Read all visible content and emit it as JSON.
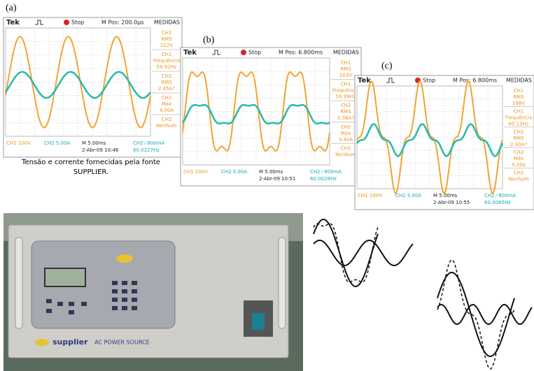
{
  "panels": [
    {
      "label": "(a)",
      "brand": "Tek",
      "status": "Stop",
      "mpos": "M Pos: 200.0µs",
      "measures_title": "MEDIDAS",
      "measures": [
        [
          "CH1",
          "RMS",
          "212V"
        ],
        [
          "CH1",
          "Frequência",
          "59.92Hz"
        ],
        [
          "CH2",
          "RMS",
          "2.45A?"
        ],
        [
          "CH2",
          "Máx",
          "4.00A"
        ],
        [
          "CH2",
          "Nenhum"
        ]
      ],
      "footer": {
        "ch1": "CH1  100V",
        "ch2": "CH2  5.00A",
        "time": "M 5.00ms",
        "date": "2-Abr-09 10:46",
        "trig": "CH2 ⁄ 800mA",
        "freq": "60.0227Hz"
      }
    },
    {
      "label": "(b)",
      "brand": "Tek",
      "status": "Stop",
      "mpos": "M Pos: 6.800ms",
      "measures_title": "MEDIDAS",
      "measures": [
        [
          "CH1",
          "RMS",
          "203V"
        ],
        [
          "CH1",
          "Frequência",
          "59.99Hz"
        ],
        [
          "CH2",
          "RMS",
          "2.36A?"
        ],
        [
          "CH2",
          "Máx",
          "3.40A"
        ],
        [
          "CH2",
          "Nenhum"
        ]
      ],
      "footer": {
        "ch1": "CH1  100V",
        "ch2": "CH2  5.00A",
        "time": "M 5.00ms",
        "date": "2-Abr-09 10:51",
        "trig": "CH2 ⁄ 800mA",
        "freq": "60.0028Hz"
      }
    },
    {
      "label": "(c)",
      "brand": "Tek",
      "status": "Stop",
      "mpos": "M Pos: 6.800ms",
      "measures_title": "MEDIDAS",
      "measures": [
        [
          "CH1",
          "RMS",
          "198V"
        ],
        [
          "CH1",
          "Frequência",
          "60.13Hz"
        ],
        [
          "CH2",
          "RMS",
          "2.30A?"
        ],
        [
          "CH2",
          "Máx",
          "4.20A"
        ],
        [
          "CH2",
          "Nenhum"
        ]
      ],
      "footer": {
        "ch1": "CH1  100V",
        "ch2": "CH2  5.00A",
        "time": "M 5.00ms",
        "date": "2-Abr-09 10:55",
        "trig": "CH2 ⁄ 800mA",
        "freq": "60.0085Hz"
      }
    }
  ],
  "caption": [
    "Tensão e corrente fornecidas pela fonte",
    "SUPPLIER."
  ],
  "device": {
    "brand": "supplier",
    "label": "AC POWER SOURCE"
  }
}
